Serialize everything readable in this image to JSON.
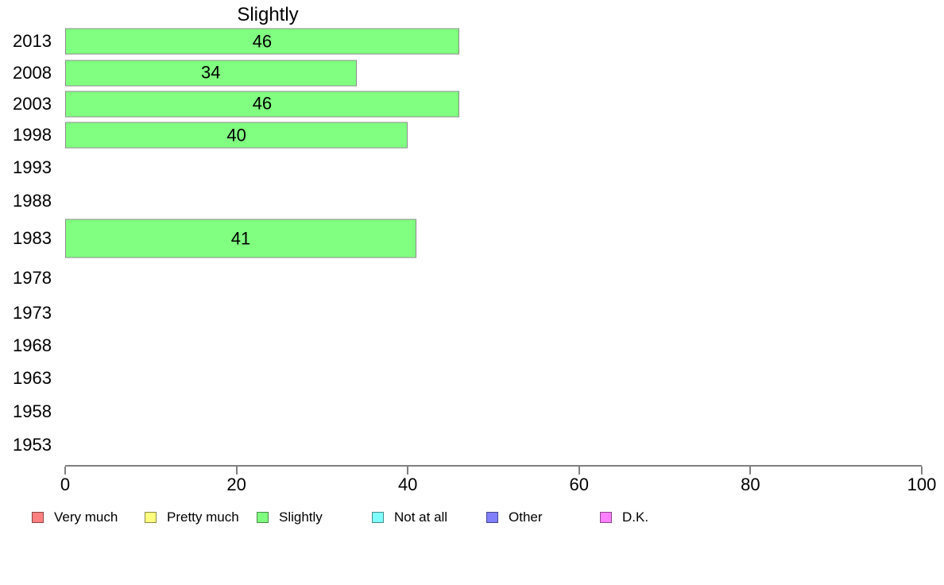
{
  "chart_data": {
    "type": "bar",
    "orientation": "horizontal",
    "title": "Slightly",
    "categories": [
      "2013",
      "2008",
      "2003",
      "1998",
      "1993",
      "1988",
      "1983",
      "1978",
      "1973",
      "1968",
      "1963",
      "1958",
      "1953"
    ],
    "values": [
      46,
      34,
      46,
      40,
      null,
      null,
      41,
      null,
      null,
      null,
      null,
      null,
      null
    ],
    "bar_color": "#80FF80",
    "bar_border_color": "#8c8c8c",
    "xlim": [
      0,
      100
    ],
    "x_ticks": [
      0,
      20,
      40,
      60,
      80,
      100
    ],
    "grid": false,
    "legend_position": "bottom",
    "legend": [
      {
        "label": "Very much",
        "color": "#FF8080"
      },
      {
        "label": "Pretty much",
        "color": "#FFFF80"
      },
      {
        "label": "Slightly",
        "color": "#80FF80"
      },
      {
        "label": "Not at all",
        "color": "#80FFFF"
      },
      {
        "label": "Other",
        "color": "#8080FF"
      },
      {
        "label": "D.K.",
        "color": "#FF80FF"
      }
    ]
  }
}
